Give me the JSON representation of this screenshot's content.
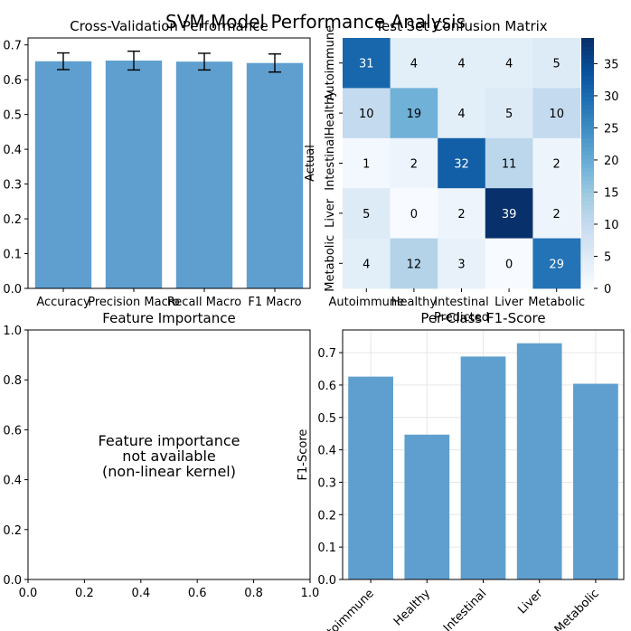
{
  "suptitle": "SVM Model Performance Analysis",
  "chart_data": [
    {
      "type": "bar",
      "title": "Cross-Validation Performance",
      "categories": [
        "Accuracy",
        "Precision Macro",
        "Recall Macro",
        "F1 Macro"
      ],
      "values": [
        0.653,
        0.655,
        0.652,
        0.648
      ],
      "errors": [
        0.024,
        0.027,
        0.024,
        0.026
      ],
      "ylim": [
        0,
        0.72
      ],
      "yticks": [
        "0.0",
        "0.1",
        "0.2",
        "0.3",
        "0.4",
        "0.5",
        "0.6",
        "0.7"
      ],
      "bar_color": "#5f9fcf",
      "grid": false
    },
    {
      "type": "heatmap",
      "title": "Test Set Confusion Matrix",
      "xlabel": "Predicted",
      "ylabel": "Actual",
      "labels": [
        "Autoimmune",
        "Healthy",
        "Intestinal",
        "Liver",
        "Metabolic"
      ],
      "matrix": [
        [
          31,
          4,
          4,
          4,
          5
        ],
        [
          10,
          19,
          4,
          5,
          10
        ],
        [
          1,
          2,
          32,
          11,
          2
        ],
        [
          5,
          0,
          2,
          39,
          2
        ],
        [
          4,
          12,
          3,
          0,
          29
        ]
      ],
      "colormap": "Blues",
      "vmin": 0,
      "vmax": 39,
      "colorbar_ticks": [
        "0",
        "5",
        "10",
        "15",
        "20",
        "25",
        "30",
        "35"
      ]
    },
    {
      "type": "bar",
      "title": "Feature Importance",
      "message": [
        "Feature importance",
        "not available",
        "(non-linear kernel)"
      ],
      "xlim": [
        0,
        1
      ],
      "ylim": [
        0,
        1
      ],
      "xticks": [
        "0.0",
        "0.2",
        "0.4",
        "0.6",
        "0.8",
        "1.0"
      ],
      "yticks": [
        "0.0",
        "0.2",
        "0.4",
        "0.6",
        "0.8",
        "1.0"
      ]
    },
    {
      "type": "bar",
      "title": "Per-Class F1-Score",
      "ylabel": "F1-Score",
      "categories": [
        "Autoimmune",
        "Healthy",
        "Intestinal",
        "Liver",
        "Metabolic"
      ],
      "values": [
        0.626,
        0.447,
        0.688,
        0.729,
        0.604
      ],
      "ylim": [
        0,
        0.77
      ],
      "yticks": [
        "0.0",
        "0.1",
        "0.2",
        "0.3",
        "0.4",
        "0.5",
        "0.6",
        "0.7"
      ],
      "bar_color": "#5f9fcf",
      "grid": true
    }
  ]
}
